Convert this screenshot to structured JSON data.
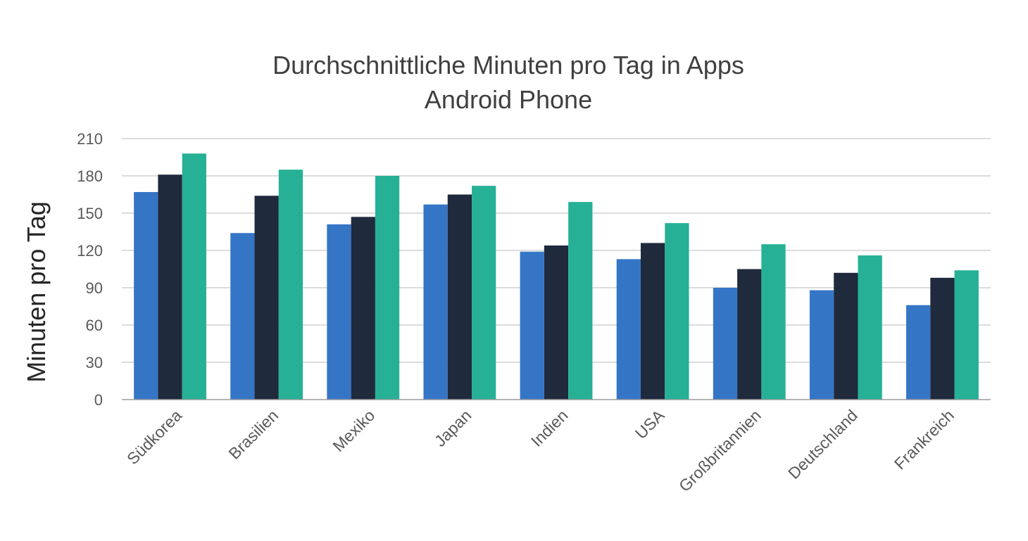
{
  "chart_data": {
    "type": "bar",
    "title": "Durchschnittliche Minuten pro Tag in Apps",
    "subtitle": "Android Phone",
    "xlabel": "",
    "ylabel": "Minuten pro Tag",
    "ylim": [
      0,
      210
    ],
    "yticks": [
      0,
      30,
      60,
      90,
      120,
      150,
      180,
      210
    ],
    "grid": true,
    "legend": "none",
    "categories": [
      "Südkorea",
      "Brasilien",
      "Mexiko",
      "Japan",
      "Indien",
      "USA",
      "Großbritannien",
      "Deutschland",
      "Frankreich"
    ],
    "series": [
      {
        "color": "#3575c6",
        "values": [
          167,
          134,
          141,
          157,
          119,
          113,
          90,
          88,
          76
        ]
      },
      {
        "color": "#1f2a3c",
        "values": [
          181,
          164,
          147,
          165,
          124,
          126,
          105,
          102,
          98
        ]
      },
      {
        "color": "#26b196",
        "values": [
          198,
          185,
          180,
          172,
          159,
          142,
          125,
          116,
          104
        ]
      }
    ]
  }
}
